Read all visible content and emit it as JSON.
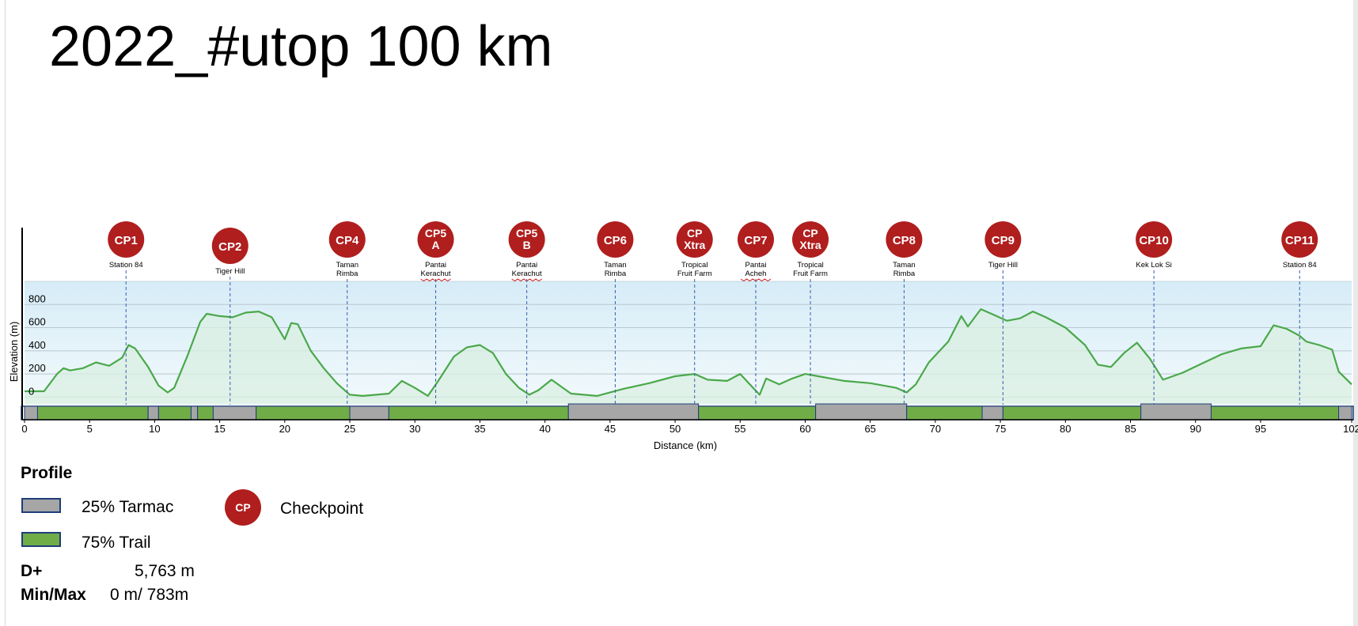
{
  "title": "2022_#utop 100 km",
  "colors": {
    "line": "#4aa84a",
    "fill": "#d9efe2",
    "band_top": "#d6ecf7",
    "tarmac": "#a6a6a6",
    "trail": "#70ad47",
    "checkpoint": "#b01e1e",
    "guide": "#3a5fae"
  },
  "chart_data": {
    "type": "area",
    "xlabel": "Distance  (km)",
    "ylabel": "Elevation (m)",
    "xlim": [
      0,
      102
    ],
    "ylim": [
      -100,
      1000
    ],
    "x_ticks": [
      0,
      5,
      10,
      15,
      20,
      25,
      30,
      35,
      40,
      45,
      50,
      55,
      60,
      65,
      70,
      75,
      80,
      85,
      90,
      95,
      102
    ],
    "y_ticks": [
      0,
      200,
      400,
      600,
      800
    ],
    "grid": "horizontal",
    "series": [
      {
        "x": [
          0,
          1.5,
          2.5,
          3,
          3.5,
          4.5,
          5.5,
          6.5,
          7.5,
          8,
          8.5,
          9.5,
          10.3,
          11,
          11.5,
          12.5,
          13.5,
          14,
          15,
          16,
          17,
          18,
          19,
          20,
          20.5,
          21,
          22,
          23,
          24,
          25,
          26,
          28,
          29,
          30,
          31,
          31.8,
          33,
          34,
          35,
          36,
          37,
          38,
          38.8,
          39.5,
          40.5,
          42,
          44,
          46,
          48,
          50,
          51.5,
          52.5,
          54,
          55,
          56,
          56.5,
          57,
          58,
          59,
          60,
          61,
          63,
          65,
          67,
          67.8,
          68.5,
          69.5,
          70.5,
          71,
          72,
          72.5,
          73.5,
          74.5,
          75.5,
          76.5,
          77.5,
          78.5,
          80,
          81.5,
          82.5,
          83.5,
          84.5,
          85.5,
          86.5,
          87.5,
          89,
          90.5,
          92,
          93.5,
          95,
          96,
          97,
          98,
          98.5,
          99.5,
          100.5,
          101,
          102
        ],
        "y": [
          50,
          50,
          200,
          250,
          230,
          250,
          300,
          270,
          340,
          450,
          420,
          260,
          100,
          40,
          80,
          350,
          650,
          720,
          700,
          690,
          730,
          740,
          690,
          500,
          640,
          630,
          400,
          250,
          120,
          20,
          10,
          30,
          140,
          80,
          10,
          140,
          350,
          430,
          450,
          380,
          200,
          80,
          20,
          60,
          150,
          30,
          10,
          70,
          120,
          180,
          200,
          150,
          140,
          200,
          80,
          20,
          160,
          110,
          160,
          200,
          180,
          140,
          120,
          80,
          40,
          110,
          300,
          420,
          480,
          700,
          610,
          760,
          710,
          660,
          680,
          740,
          690,
          600,
          450,
          280,
          260,
          380,
          470,
          330,
          150,
          210,
          290,
          370,
          420,
          440,
          620,
          590,
          530,
          480,
          450,
          410,
          220,
          110
        ]
      }
    ],
    "surface": [
      {
        "from": 0,
        "to": 1,
        "type": "tarmac"
      },
      {
        "from": 1,
        "to": 9.5,
        "type": "trail"
      },
      {
        "from": 9.5,
        "to": 10.3,
        "type": "tarmac"
      },
      {
        "from": 10.3,
        "to": 12.8,
        "type": "trail"
      },
      {
        "from": 12.8,
        "to": 13.3,
        "type": "tarmac"
      },
      {
        "from": 13.3,
        "to": 14.5,
        "type": "trail"
      },
      {
        "from": 14.5,
        "to": 17.8,
        "type": "tarmac"
      },
      {
        "from": 17.8,
        "to": 25,
        "type": "trail"
      },
      {
        "from": 25,
        "to": 28,
        "type": "tarmac"
      },
      {
        "from": 28,
        "to": 41.8,
        "type": "trail"
      },
      {
        "from": 41.8,
        "to": 51.8,
        "type": "tarmac"
      },
      {
        "from": 51.8,
        "to": 60.8,
        "type": "trail"
      },
      {
        "from": 60.8,
        "to": 67.8,
        "type": "tarmac"
      },
      {
        "from": 67.8,
        "to": 73.6,
        "type": "trail"
      },
      {
        "from": 73.6,
        "to": 75.2,
        "type": "tarmac"
      },
      {
        "from": 75.2,
        "to": 85.8,
        "type": "trail"
      },
      {
        "from": 85.8,
        "to": 91.2,
        "type": "tarmac"
      },
      {
        "from": 91.2,
        "to": 101,
        "type": "trail"
      },
      {
        "from": 101,
        "to": 102,
        "type": "tarmac"
      }
    ],
    "checkpoints": [
      {
        "label": [
          "CP1"
        ],
        "place": [
          "Station 84"
        ],
        "km": 7.8,
        "underline": false
      },
      {
        "label": [
          "CP2"
        ],
        "place": [
          "Tiger Hill"
        ],
        "km": 15.8,
        "underline": false
      },
      {
        "label": [
          "CP4"
        ],
        "place": [
          "Taman",
          "Rimba"
        ],
        "km": 24.8,
        "underline": false
      },
      {
        "label": [
          "CP5",
          "A"
        ],
        "place": [
          "Pantai",
          "Kerachut"
        ],
        "km": 31.6,
        "underline": true
      },
      {
        "label": [
          "CP5",
          "B"
        ],
        "place": [
          "Pantai",
          "Kerachut"
        ],
        "km": 38.6,
        "underline": true
      },
      {
        "label": [
          "CP6"
        ],
        "place": [
          "Taman",
          "Rimba"
        ],
        "km": 45.4,
        "underline": false
      },
      {
        "label": [
          "CP",
          "Xtra"
        ],
        "place": [
          "Tropical",
          "Fruit Farm"
        ],
        "km": 51.5,
        "underline": false
      },
      {
        "label": [
          "CP7"
        ],
        "place": [
          "Pantai",
          "Acheh"
        ],
        "km": 56.2,
        "underline": true
      },
      {
        "label": [
          "CP",
          "Xtra"
        ],
        "place": [
          "Tropical",
          "Fruit Farm"
        ],
        "km": 60.4,
        "underline": false
      },
      {
        "label": [
          "CP8"
        ],
        "place": [
          "Taman",
          "Rimba"
        ],
        "km": 67.6,
        "underline": false
      },
      {
        "label": [
          "CP9"
        ],
        "place": [
          "Tiger Hill"
        ],
        "km": 75.2,
        "underline": false
      },
      {
        "label": [
          "CP10"
        ],
        "place": [
          "Kek Lok Si"
        ],
        "km": 86.8,
        "underline": false
      },
      {
        "label": [
          "CP11"
        ],
        "place": [
          "Station 84"
        ],
        "km": 98,
        "underline": false
      }
    ]
  },
  "legend": {
    "title": "Profile",
    "tarmac": "25% Tarmac",
    "trail": "75% Trail",
    "cp_symbol": "CP",
    "checkpoint": "Checkpoint"
  },
  "stats": {
    "dplus_key": "D+",
    "dplus_value": "5,763 m",
    "minmax_key": "Min/Max",
    "minmax_value": "0 m/ 783m"
  }
}
